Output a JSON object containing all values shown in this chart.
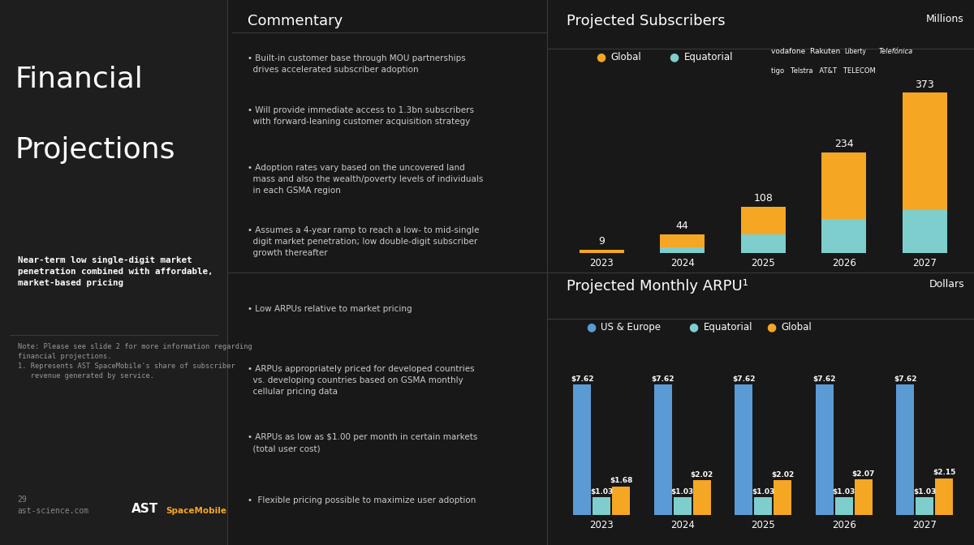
{
  "bg_color": "#181818",
  "left_panel_color": "#1e1e1e",
  "mid_panel_color": "#151515",
  "title_text": "Financial\nProjections",
  "subtitle_text": "Near-term low single-digit market\npenetration combined with affordable,\nmarket-based pricing",
  "note_text": "Note: Please see slide 2 for more information regarding\nfinancial projections.\n1. Represents AST SpaceMobile's share of subscriber\n   revenue generated by service.",
  "footer_page": "29\nast-science.com",
  "commentary_title": "Commentary",
  "commentary_items": [
    "• Built-in customer base through MOU partnerships\n  drives accelerated subscriber adoption",
    "• Will provide immediate access to 1.3bn subscribers\n  with forward-leaning customer acquisition strategy",
    "• Adoption rates vary based on the uncovered land\n  mass and also the wealth/poverty levels of individuals\n  in each GSMA region",
    "• Assumes a 4-year ramp to reach a low- to mid-single\n  digit market penetration; low double-digit subscriber\n  growth thereafter"
  ],
  "arpu_commentary_items": [
    "• Low ARPUs relative to market pricing",
    "• ARPUs appropriately priced for developed countries\n  vs. developing countries based on GSMA monthly\n  cellular pricing data",
    "• ARPUs as low as $1.00 per month in certain markets\n  (total user cost)",
    "•  Flexible pricing possible to maximize user adoption"
  ],
  "subs_title": "Projected Subscribers",
  "subs_unit": "Millions",
  "subs_years": [
    "2023",
    "2024",
    "2025",
    "2026",
    "2027"
  ],
  "subs_global": [
    9,
    44,
    108,
    234,
    373
  ],
  "subs_equatorial": [
    1,
    15,
    45,
    80,
    100
  ],
  "subs_labels": [
    9,
    44,
    108,
    234,
    373
  ],
  "subs_global_color": "#F5A623",
  "subs_equatorial_color": "#7ECECE",
  "arpu_title": "Projected Monthly ARPU¹",
  "arpu_unit": "Dollars",
  "arpu_years": [
    "2023",
    "2024",
    "2025",
    "2026",
    "2027"
  ],
  "arpu_us_europe": [
    7.62,
    7.62,
    7.62,
    7.62,
    7.62
  ],
  "arpu_equatorial": [
    1.03,
    1.03,
    1.03,
    1.03,
    1.03
  ],
  "arpu_global": [
    1.68,
    2.02,
    2.02,
    2.07,
    2.15
  ],
  "arpu_us_color": "#5B9BD5",
  "arpu_eq_color": "#7ECECE",
  "arpu_global_color": "#F5A623",
  "text_color": "#ffffff",
  "text_color_dim": "#cccccc",
  "divider_color": "#3a3a3a"
}
